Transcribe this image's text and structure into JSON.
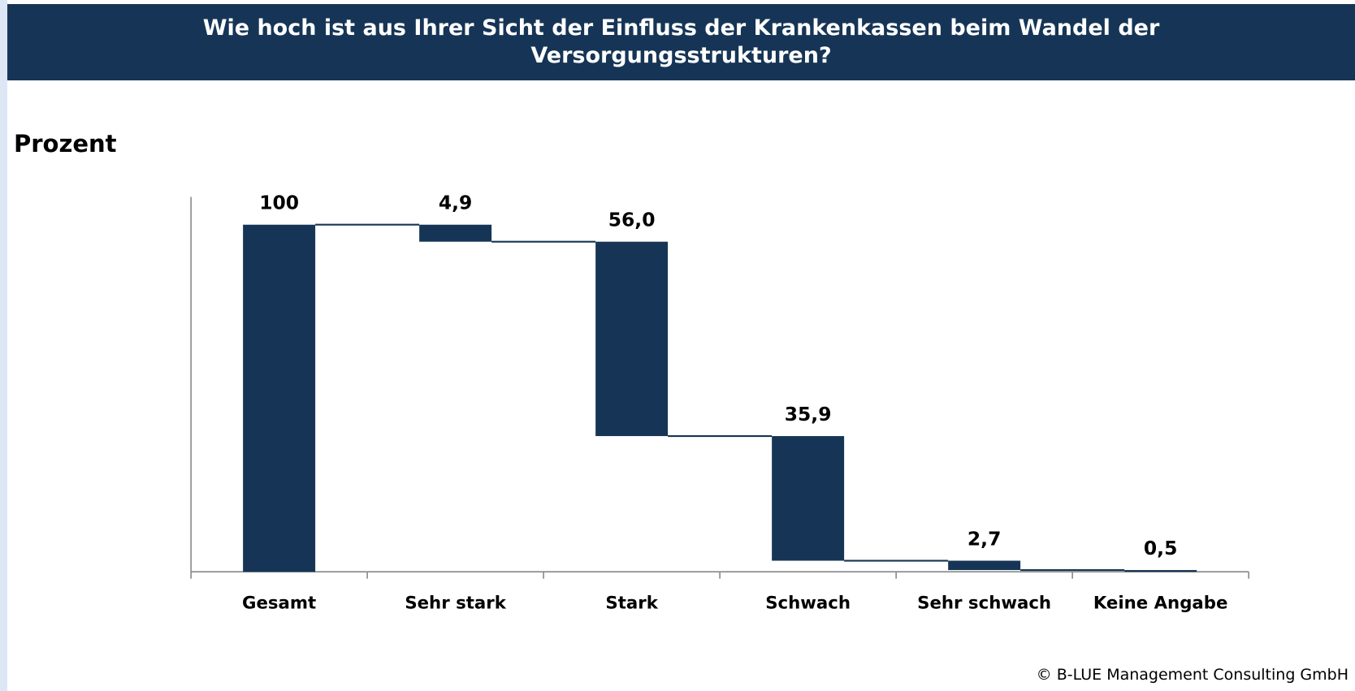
{
  "title": "Wie hoch ist aus Ihrer Sicht der Einfluss der Krankenkassen beim Wandel der Versorgungsstrukturen?",
  "footer": "© B-LUE Management Consulting GmbH",
  "chart_data": {
    "type": "waterfall",
    "y_label": "Prozent",
    "categories": [
      "Gesamt",
      "Sehr stark",
      "Stark",
      "Schwach",
      "Sehr schwach",
      "Keine Angabe"
    ],
    "values": [
      100,
      4.9,
      56.0,
      35.9,
      2.7,
      0.5
    ],
    "value_labels": [
      "100",
      "4,9",
      "56,0",
      "35,9",
      "2,7",
      "0,5"
    ],
    "color": "#163556",
    "ylim": [
      0,
      108
    ]
  }
}
